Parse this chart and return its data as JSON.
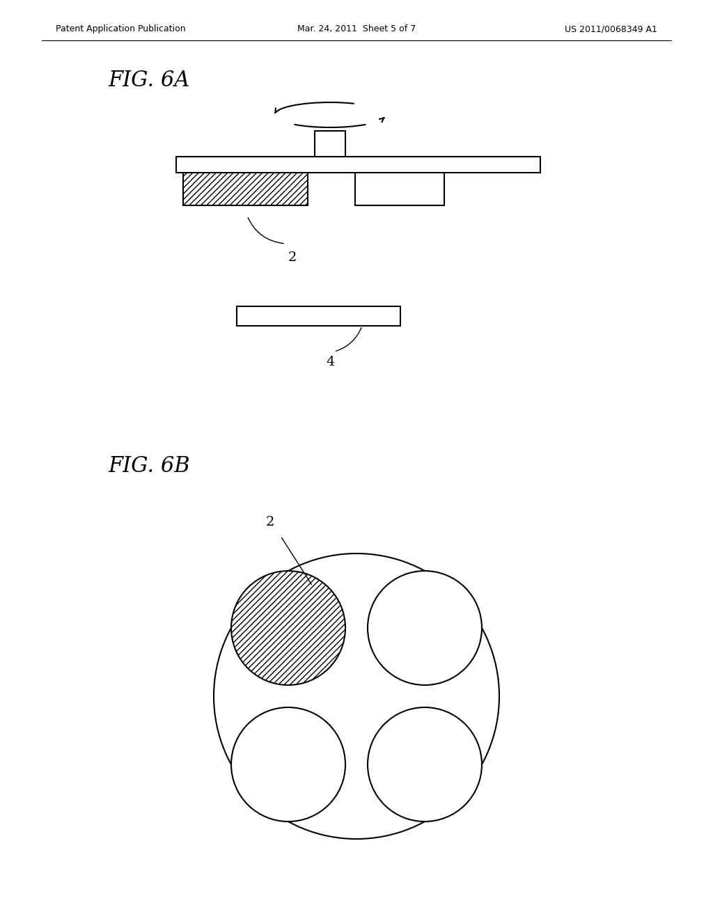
{
  "bg_color": "#ffffff",
  "line_color": "#000000",
  "header_left": "Patent Application Publication",
  "header_mid": "Mar. 24, 2011  Sheet 5 of 7",
  "header_right": "US 2011/0068349 A1",
  "fig6a_label": "FIG. 6A",
  "fig6b_label": "FIG. 6B",
  "label_2": "2",
  "label_4": "4",
  "label_2b": "2"
}
